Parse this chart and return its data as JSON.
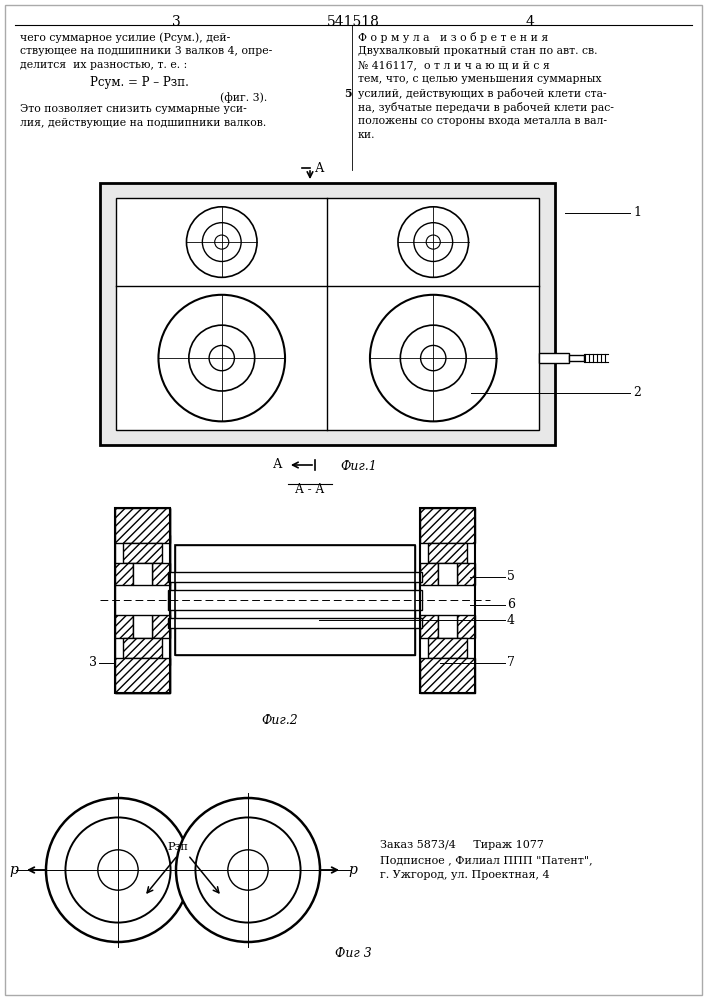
{
  "bg_color": "#ffffff",
  "title_num": "541518",
  "page_left": "3",
  "page_right": "4",
  "text_left_lines": [
    "чего суммарное усилие (Рсум.), дей-",
    "ствующее на подшипники 3 валков 4, опре-",
    "делится  их разностью, т. е. :"
  ],
  "formula_line": "Рсум. = Р – Рзп.",
  "fig3_ref": "(фиг. 3).",
  "text_left_bottom": [
    "Это позволяет снизить суммарные уси-",
    "лия, действующие на подшипники валков."
  ],
  "text_right_lines": [
    "Ф о р м у л а   и з о б р е т е н и я",
    "Двухвалковый прокатный стан по авт. св.",
    "№ 416117,  о т л и ч а ю щ и й с я",
    "тем, что, с целью уменьшения суммарных",
    "усилий, действующих в рабочей клети ста-",
    "на, зубчатые передачи в рабочей клети рас-",
    "положены со стороны входа металла в вал-",
    "ки."
  ],
  "fig1_label": "Фиг.1",
  "fig2_label": "Фиг.2",
  "fig3_label": "Фиг 3",
  "bottom_text": [
    "Заказ 5873/4     Тираж 1077",
    "Подписное , Филиал ППП \"Патент\",",
    "г. Ужгород, ул. Проектная, 4"
  ],
  "section_label": "А - А"
}
